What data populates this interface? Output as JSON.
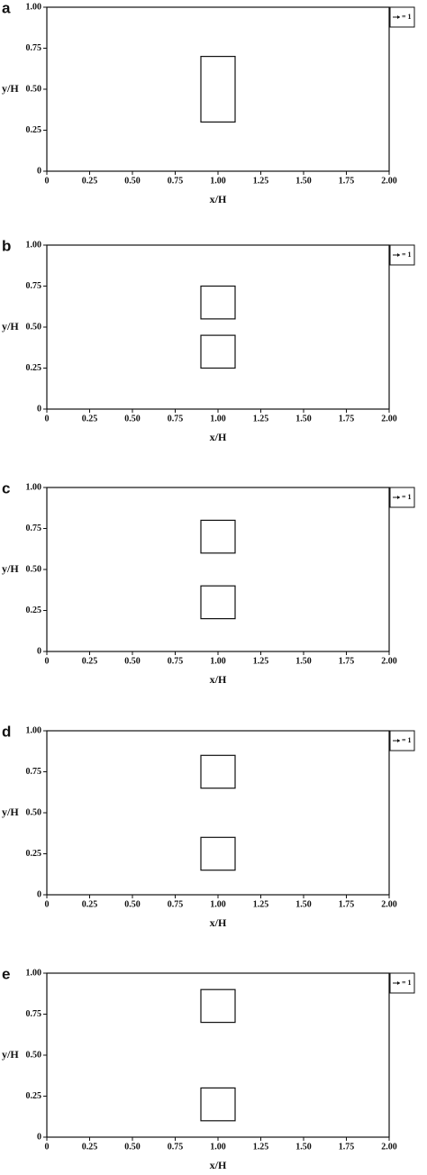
{
  "chart_data": [
    {
      "type": "quiver",
      "panel": "a",
      "xlabel": "x/H",
      "ylabel": "y/H",
      "legend_label": "= 1",
      "xlim": [
        0,
        2
      ],
      "ylim": [
        0,
        1
      ],
      "xticks": [
        0,
        0.25,
        {
          "value": 0.5,
          "label": "0.50"
        },
        0.75,
        {
          "value": 1,
          "label": "1.00"
        },
        1.25,
        {
          "value": 1.5,
          "label": "1.50"
        },
        1.75,
        {
          "value": 2,
          "label": "2.00"
        }
      ],
      "yticks": [
        0,
        0.25,
        {
          "value": 0.5,
          "label": "0.50"
        },
        0.75,
        {
          "value": 1,
          "label": "1.00"
        }
      ],
      "obstacles": [
        {
          "x": [
            0.9,
            1.1
          ],
          "y": [
            0.3,
            0.7
          ]
        }
      ]
    },
    {
      "type": "quiver",
      "panel": "b",
      "xlabel": "x/H",
      "ylabel": "y/H",
      "legend_label": "= 1",
      "xlim": [
        0,
        2
      ],
      "ylim": [
        0,
        1
      ],
      "xticks": [
        0,
        0.25,
        {
          "value": 0.5,
          "label": "0.50"
        },
        0.75,
        {
          "value": 1,
          "label": "1.00"
        },
        1.25,
        {
          "value": 1.5,
          "label": "1.50"
        },
        1.75,
        {
          "value": 2,
          "label": "2.00"
        }
      ],
      "yticks": [
        0,
        0.25,
        {
          "value": 0.5,
          "label": "0.50"
        },
        0.75,
        {
          "value": 1,
          "label": "1.00"
        }
      ],
      "obstacles": [
        {
          "x": [
            0.9,
            1.1
          ],
          "y": [
            0.55,
            0.75
          ]
        },
        {
          "x": [
            0.9,
            1.1
          ],
          "y": [
            0.25,
            0.45
          ]
        }
      ]
    },
    {
      "type": "quiver",
      "panel": "c",
      "xlabel": "x/H",
      "ylabel": "y/H",
      "legend_label": "= 1",
      "xlim": [
        0,
        2
      ],
      "ylim": [
        0,
        1
      ],
      "xticks": [
        0,
        0.25,
        {
          "value": 0.5,
          "label": "0.50"
        },
        0.75,
        {
          "value": 1,
          "label": "1.00"
        },
        1.25,
        {
          "value": 1.5,
          "label": "1.50"
        },
        1.75,
        {
          "value": 2,
          "label": "2.00"
        }
      ],
      "yticks": [
        0,
        0.25,
        {
          "value": 0.5,
          "label": "0.50"
        },
        0.75,
        {
          "value": 1,
          "label": "1.00"
        }
      ],
      "obstacles": [
        {
          "x": [
            0.9,
            1.1
          ],
          "y": [
            0.6,
            0.8
          ]
        },
        {
          "x": [
            0.9,
            1.1
          ],
          "y": [
            0.2,
            0.4
          ]
        }
      ]
    },
    {
      "type": "quiver",
      "panel": "d",
      "xlabel": "x/H",
      "ylabel": "y/H",
      "legend_label": "= 1",
      "xlim": [
        0,
        2
      ],
      "ylim": [
        0,
        1
      ],
      "xticks": [
        0,
        0.25,
        {
          "value": 0.5,
          "label": "0.50"
        },
        0.75,
        {
          "value": 1,
          "label": "1.00"
        },
        1.25,
        {
          "value": 1.5,
          "label": "1.50"
        },
        1.75,
        {
          "value": 2,
          "label": "2.00"
        }
      ],
      "yticks": [
        0,
        0.25,
        {
          "value": 0.5,
          "label": "0.50"
        },
        0.75,
        {
          "value": 1,
          "label": "1.00"
        }
      ],
      "obstacles": [
        {
          "x": [
            0.9,
            1.1
          ],
          "y": [
            0.65,
            0.85
          ]
        },
        {
          "x": [
            0.9,
            1.1
          ],
          "y": [
            0.15,
            0.35
          ]
        }
      ]
    },
    {
      "type": "quiver",
      "panel": "e",
      "xlabel": "x/H",
      "ylabel": "y/H",
      "legend_label": "= 1",
      "xlim": [
        0,
        2
      ],
      "ylim": [
        0,
        1
      ],
      "xticks": [
        0,
        0.25,
        {
          "value": 0.5,
          "label": "0.50"
        },
        0.75,
        {
          "value": 1,
          "label": "1.00"
        },
        1.25,
        {
          "value": 1.5,
          "label": "1.50"
        },
        1.75,
        {
          "value": 2,
          "label": "2.00"
        }
      ],
      "yticks": [
        0,
        0.25,
        {
          "value": 0.5,
          "label": "0.50"
        },
        0.75,
        {
          "value": 1,
          "label": "1.00"
        }
      ],
      "obstacles": [
        {
          "x": [
            0.9,
            1.1
          ],
          "y": [
            0.7,
            0.9
          ]
        },
        {
          "x": [
            0.9,
            1.1
          ],
          "y": [
            0.1,
            0.3
          ]
        }
      ]
    }
  ]
}
